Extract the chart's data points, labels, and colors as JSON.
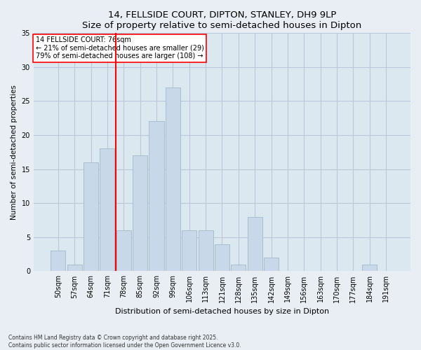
{
  "title": "14, FELLSIDE COURT, DIPTON, STANLEY, DH9 9LP",
  "subtitle": "Size of property relative to semi-detached houses in Dipton",
  "xlabel": "Distribution of semi-detached houses by size in Dipton",
  "ylabel": "Number of semi-detached properties",
  "categories": [
    "50sqm",
    "57sqm",
    "64sqm",
    "71sqm",
    "78sqm",
    "85sqm",
    "92sqm",
    "99sqm",
    "106sqm",
    "113sqm",
    "121sqm",
    "128sqm",
    "135sqm",
    "142sqm",
    "149sqm",
    "156sqm",
    "163sqm",
    "170sqm",
    "177sqm",
    "184sqm",
    "191sqm"
  ],
  "values": [
    3,
    1,
    16,
    18,
    6,
    17,
    22,
    27,
    6,
    6,
    4,
    1,
    8,
    2,
    0,
    0,
    0,
    0,
    0,
    1,
    0
  ],
  "bar_color": "#c8d8e8",
  "bar_edge_color": "#a8bece",
  "annotation_title": "14 FELLSIDE COURT: 76sqm",
  "annotation_line1": "← 21% of semi-detached houses are smaller (29)",
  "annotation_line2": "79% of semi-detached houses are larger (108) →",
  "ylim": [
    0,
    35
  ],
  "yticks": [
    0,
    5,
    10,
    15,
    20,
    25,
    30,
    35
  ],
  "footer1": "Contains HM Land Registry data © Crown copyright and database right 2025.",
  "footer2": "Contains public sector information licensed under the Open Government Licence v3.0.",
  "bg_color": "#e8eef4",
  "plot_bg_color": "#dce8f0",
  "grid_color": "#b8c8d8"
}
